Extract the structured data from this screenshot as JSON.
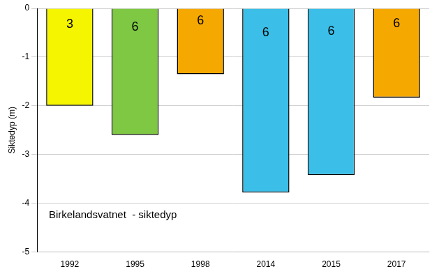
{
  "chart_data": {
    "type": "bar",
    "categories": [
      "1992",
      "1995",
      "1998",
      "2014",
      "2015",
      "2017"
    ],
    "values": [
      -2.0,
      -2.6,
      -1.35,
      -3.78,
      -3.42,
      -1.83
    ],
    "colors": [
      "#f5f500",
      "#7ec843",
      "#f5a800",
      "#3bbfe8",
      "#3bbfe8",
      "#f5a800"
    ],
    "bar_labels": [
      3,
      6,
      6,
      6,
      6,
      6
    ],
    "y_label": "Siktedyp (m)",
    "annotation": "Birkelandsvatnet  - siktedyp",
    "ylim": [
      -5,
      0
    ],
    "yticks": [
      0,
      -1,
      -2,
      -3,
      -4,
      -5
    ],
    "grid": true
  }
}
